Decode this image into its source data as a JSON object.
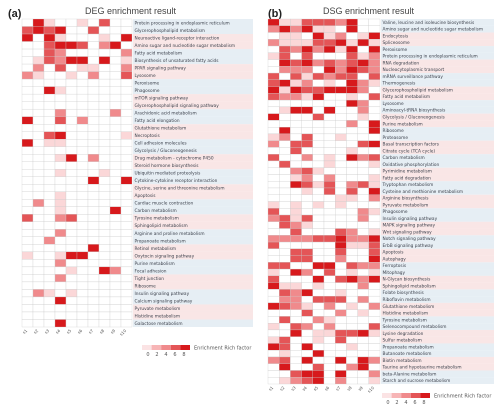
{
  "panel_a": {
    "tag": "(a)",
    "title": "DEG enrichment result",
    "terms": [
      "Protein processing in endoplasmic reticulum",
      "Glycerophospholipid metabolism",
      "Neuroactive ligand-receptor interaction",
      "Amino sugar and nucleotide sugar metabolism",
      "Fatty acid metabolism",
      "Biosynthesis of unsaturated fatty acids",
      "PPAR signaling pathway",
      "Lysosome",
      "Peroxisome",
      "Phagosome",
      "mTOR signaling pathway",
      "Glycerophospholipid signaling pathway",
      "Arachidonic acid metabolism",
      "Fatty acid elongation",
      "Glutathione metabolism",
      "Necroptosis",
      "Cell adhesion molecules",
      "Glycolysis / Gluconeogenesis",
      "Drug metabolism - cytochrome P450",
      "Steroid hormone biosynthesis",
      "Ubiquitin mediated proteolysis",
      "Cytokine-cytokine receptor interaction",
      "Glycine, serine and threonine metabolism",
      "Apoptosis",
      "Cardiac muscle contraction",
      "Carbon metabolism",
      "Tyrosine metabolism",
      "Sphingolipid metabolism",
      "Arginine and proline metabolism",
      "Propanoate metabolism",
      "Retinol metabolism",
      "Oxytocin signaling pathway",
      "Purine metabolism",
      "Focal adhesion",
      "Tight junction",
      "Ribosome",
      "Insulin signaling pathway",
      "Calcium signaling pathway",
      "Pyruvate metabolism",
      "Histidine metabolism",
      "Galactose metabolism"
    ],
    "samples": [
      "s1",
      "s2",
      "s3",
      "s4",
      "s5",
      "s6",
      "s7",
      "s8",
      "s9",
      "s10"
    ],
    "legend": {
      "title": "Enrichment  Rich factor",
      "ticks": [
        "0",
        "2",
        "4",
        "6",
        "8"
      ]
    }
  },
  "panel_b": {
    "tag": "(b)",
    "title": "DSG enrichment result",
    "terms": [
      "Valine, leucine and isoleucine biosynthesis",
      "Amino sugar and nucleotide sugar metabolism",
      "Endocytosis",
      "Spliceosome",
      "Peroxisome",
      "Protein processing in endoplasmic reticulum",
      "RNA degradation",
      "Nucleocytoplasmic transport",
      "mRNA surveillance pathway",
      "Thermogenesis",
      "Glycerophospholipid metabolism",
      "Fatty acid metabolism",
      "Lysosome",
      "Aminoacyl-tRNA biosynthesis",
      "Glycolysis / Gluconeogenesis",
      "Purine metabolism",
      "Ribosome",
      "Proteasome",
      "Basal transcription factors",
      "Citrate cycle (TCA cycle)",
      "Carbon metabolism",
      "Oxidative phosphorylation",
      "Pyrimidine metabolism",
      "Fatty acid degradation",
      "Tryptophan metabolism",
      "Cysteine and methionine metabolism",
      "Arginine biosynthesis",
      "Pyruvate metabolism",
      "Phagosome",
      "Insulin signaling pathway",
      "MAPK signaling pathway",
      "Wnt signaling pathway",
      "Notch signaling pathway",
      "ErbB signaling pathway",
      "Apoptosis",
      "Autophagy",
      "Ferroptosis",
      "Mitophagy",
      "N-Glycan biosynthesis",
      "Sphingolipid metabolism",
      "Folate biosynthesis",
      "Riboflavin metabolism",
      "Glutathione metabolism",
      "Histidine metabolism",
      "Tyrosine metabolism",
      "Selenocompound metabolism",
      "Lysine degradation",
      "Sulfur metabolism",
      "Propanoate metabolism",
      "Butanoate metabolism",
      "Biotin metabolism",
      "Taurine and hypotaurine metabolism",
      "beta-Alanine metabolism",
      "Starch and sucrose metabolism"
    ],
    "samples": [
      "s1",
      "s2",
      "s3",
      "s4",
      "s5",
      "s6",
      "s7",
      "s8",
      "s9",
      "s10"
    ],
    "legend": {
      "title": "Enrichment  Rich factor",
      "ticks": [
        "0",
        "2",
        "4",
        "6",
        "8"
      ]
    }
  },
  "colors": {
    "high": "#d7191c",
    "mid": "#f08a8c",
    "low": "#fbd7d8",
    "none": "#ffffff",
    "band_blue": "#dde8f0",
    "band_pink": "#f7dede"
  }
}
